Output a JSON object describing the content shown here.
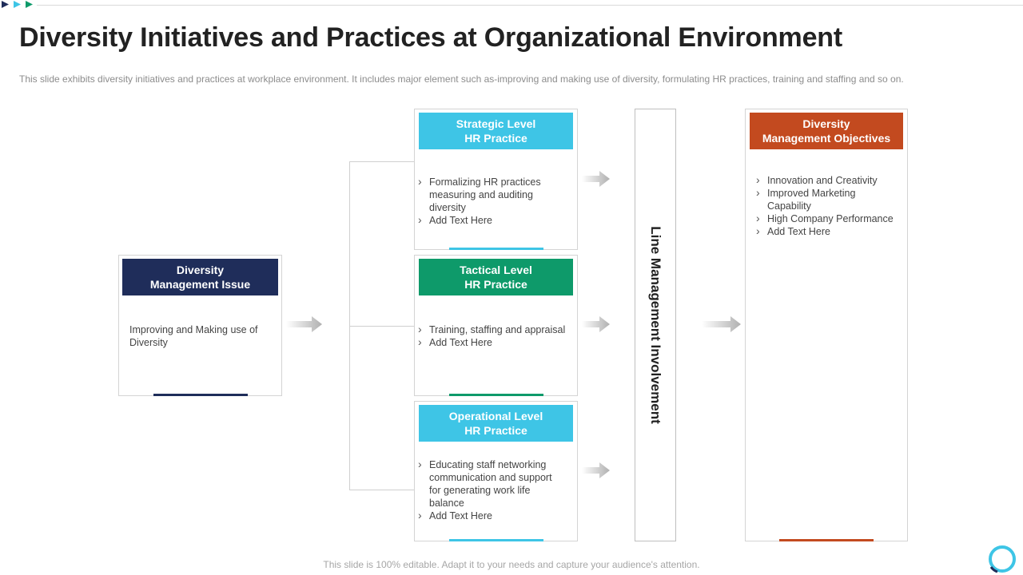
{
  "title": "Diversity Initiatives and Practices at Organizational Environment",
  "subtitle": "This slide exhibits diversity initiatives and practices at workplace environment.  It includes major element such as-improving  and making use of diversity, formulating HR practices, training and staffing and so on.",
  "issue": {
    "header": "Diversity\nManagement Issue",
    "text": "Improving  and Making use of Diversity",
    "color": "#1f2d5a"
  },
  "practices": [
    {
      "header": "Strategic Level\nHR Practice",
      "color": "#3ec5e6",
      "bullets": [
        "Formalizing  HR practices measuring and auditing diversity",
        "Add Text Here"
      ]
    },
    {
      "header": "Tactical Level\nHR Practice",
      "color": "#0e9a6a",
      "bullets": [
        "Training,  staffing and appraisal",
        "Add Text Here"
      ]
    },
    {
      "header": "Operational Level\nHR Practice",
      "color": "#3ec5e6",
      "bullets": [
        "Educating staff networking communication and support for generating work life balance",
        "Add Text Here"
      ]
    }
  ],
  "line_management": "Line Management Involvement",
  "objectives": {
    "header": "Diversity\nManagement Objectives",
    "color": "#c34a1f",
    "bullets": [
      "Innovation  and Creativity",
      "Improved  Marketing Capability",
      "High Company Performance",
      "Add Text Here"
    ]
  },
  "footer": "This slide is 100% editable. Adapt it to your needs and capture your audience's attention.",
  "accent_colors": {
    "dot1": "#1f2d5a",
    "dot2": "#3ec5e6",
    "dot3": "#0e9a6a",
    "logo": "#3ec5e6"
  }
}
